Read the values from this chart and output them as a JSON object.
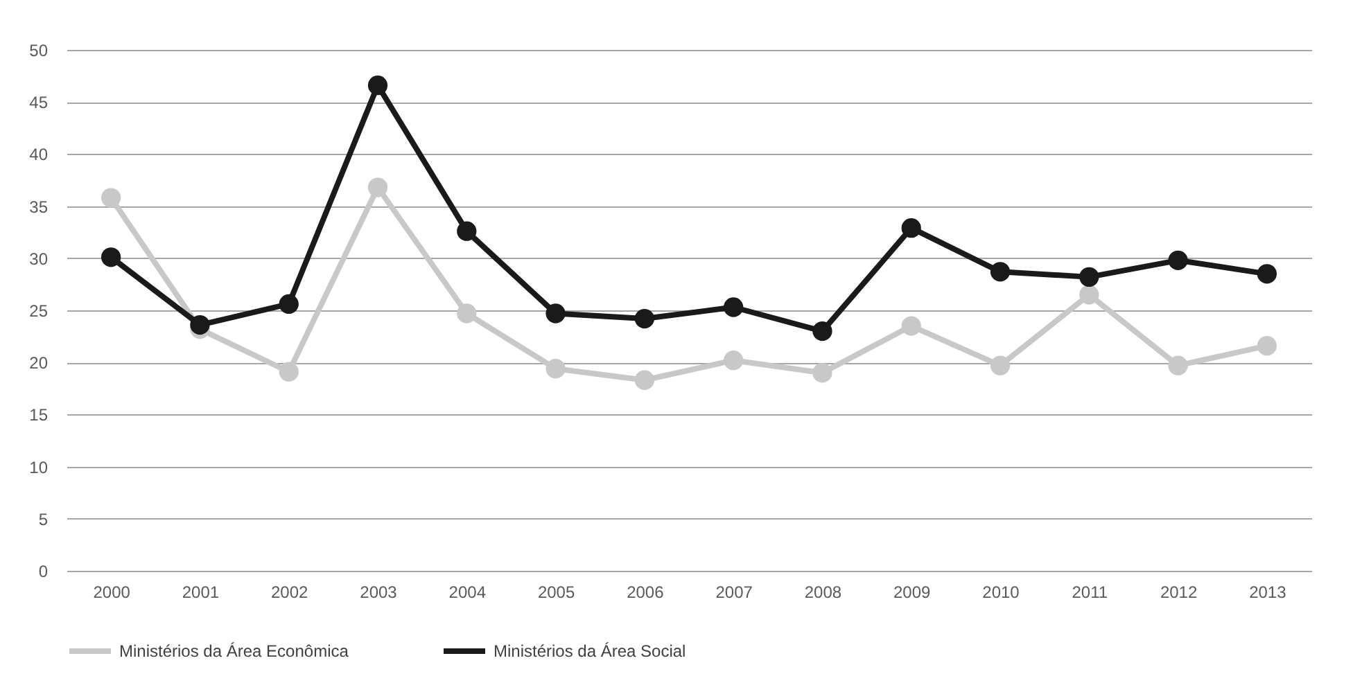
{
  "chart_data": {
    "type": "line",
    "categories": [
      "2000",
      "2001",
      "2002",
      "2003",
      "2004",
      "2005",
      "2006",
      "2007",
      "2008",
      "2009",
      "2010",
      "2011",
      "2012",
      "2013"
    ],
    "series": [
      {
        "name": "Ministérios da Área Econômica",
        "color": "#c8c8c8",
        "values": [
          35.8,
          23.2,
          19.1,
          36.8,
          24.7,
          19.4,
          18.3,
          20.2,
          19.0,
          23.5,
          19.7,
          26.5,
          19.7,
          21.6
        ]
      },
      {
        "name": "Ministérios da Área Social",
        "color": "#1a1a1a",
        "values": [
          30.1,
          23.6,
          25.6,
          46.6,
          32.6,
          24.7,
          24.2,
          25.3,
          23.0,
          32.9,
          28.7,
          28.2,
          29.8,
          28.5
        ]
      }
    ],
    "ylim": [
      0,
      50
    ],
    "yticks": [
      0,
      5,
      10,
      15,
      20,
      25,
      30,
      35,
      40,
      45,
      50
    ],
    "grid": "y",
    "legend": "bottom",
    "marker": "circle",
    "line_style": "solid"
  }
}
